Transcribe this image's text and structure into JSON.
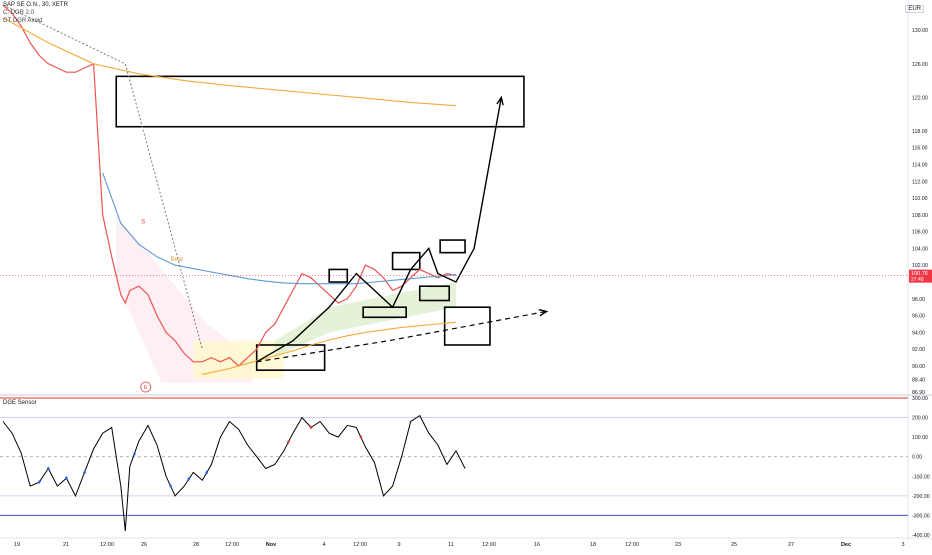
{
  "header": {
    "symbol": "SAP SE O.N., 30, XETR",
    "indicator_1": "C. DGR 2.0",
    "indicator_2": "GT DGR Avoid",
    "currency": "EUR"
  },
  "colors": {
    "price_line": "#ef5350",
    "cloud": "#fce4ec",
    "yellow_zone": "#fff9c4",
    "green_zone": "#dcedc8",
    "orange_ma": "#f4a83a",
    "blue_ma": "#5b9bd5",
    "gray_trend": "#7a7a7a",
    "current_price_bg": "#f23645",
    "oscillator": "#000000",
    "marker_blue": "#2962ff",
    "marker_red": "#e53935",
    "upper_band": "#e53935",
    "lower_band": "#3f51b5"
  },
  "annotations": {
    "bear_label": "Bear",
    "sell_label": "S",
    "event_label": "E"
  },
  "chart_data": [
    {
      "type": "line",
      "title": "SAP SE O.N., 30, XETR",
      "ylim": [
        86.9,
        133.0
      ],
      "y_ticks": [
        130.0,
        126.0,
        122.0,
        118.0,
        116.0,
        114.0,
        112.0,
        110.0,
        108.0,
        106.0,
        104.0,
        102.0,
        98.0,
        96.0,
        94.0,
        92.0,
        90.0,
        88.4,
        86.9
      ],
      "current_price": "100.76",
      "current_price_time": "27:49",
      "series": [
        {
          "role": "price",
          "x": [
            0,
            2,
            4,
            6,
            8,
            10,
            12,
            14,
            16,
            18,
            20,
            22,
            24,
            26,
            27,
            28,
            30,
            32,
            34,
            36,
            38,
            40,
            42,
            44,
            46,
            48,
            50,
            52,
            54,
            56,
            58,
            60,
            62,
            64,
            66,
            68,
            70,
            72,
            74,
            76,
            78,
            80,
            82,
            84,
            86,
            88,
            90,
            92,
            94,
            96,
            98,
            100
          ],
          "values": [
            133.0,
            132.0,
            130.5,
            128.5,
            127.0,
            126.0,
            125.5,
            125.0,
            125.0,
            125.5,
            126.0,
            108.0,
            103.0,
            98.5,
            97.5,
            99.0,
            99.5,
            98.5,
            96.0,
            94.0,
            93.0,
            91.5,
            90.5,
            90.5,
            91.0,
            90.5,
            91.0,
            90.0,
            91.0,
            92.0,
            94.0,
            95.0,
            97.0,
            99.0,
            101.0,
            100.5,
            99.5,
            98.5,
            97.5,
            98.0,
            99.5,
            102.0,
            101.5,
            100.5,
            99.0,
            99.5,
            100.5,
            101.5,
            101.0,
            100.5,
            101.0,
            100.8
          ]
        },
        {
          "role": "orange-ma",
          "x": [
            0,
            10,
            20,
            30,
            40,
            50,
            60,
            70,
            80,
            90,
            100
          ],
          "values": [
            131.5,
            128.5,
            126.0,
            124.8,
            124.0,
            123.4,
            122.9,
            122.4,
            121.9,
            121.4,
            121.0
          ]
        },
        {
          "role": "blue-ma",
          "x": [
            22,
            26,
            30,
            34,
            38,
            42,
            46,
            50,
            54,
            58,
            62,
            66,
            70,
            74,
            78,
            82,
            86,
            90,
            94,
            98,
            100
          ],
          "values": [
            113.0,
            107.0,
            104.5,
            103.0,
            102.0,
            101.6,
            101.2,
            100.8,
            100.4,
            100.1,
            99.9,
            99.8,
            99.8,
            99.8,
            99.8,
            100.0,
            100.2,
            100.4,
            100.6,
            100.8,
            100.9
          ]
        },
        {
          "role": "orange-ma-lower",
          "x": [
            44,
            50,
            56,
            60,
            64,
            68,
            72,
            76,
            80,
            84,
            88,
            92,
            96,
            100
          ],
          "values": [
            89.0,
            89.7,
            90.6,
            91.2,
            91.8,
            92.5,
            93.1,
            93.6,
            94.0,
            94.3,
            94.6,
            94.8,
            95.0,
            95.2
          ]
        },
        {
          "role": "gray-trend",
          "x": [
            0,
            27,
            34,
            40,
            44
          ],
          "values": [
            133.0,
            126.0,
            112.0,
            100.0,
            92.0
          ]
        },
        {
          "role": "forecast-up",
          "x": [
            56,
            64,
            72,
            78,
            82,
            86,
            90,
            94,
            96,
            100,
            104,
            110
          ],
          "values": [
            90.5,
            93.0,
            97.0,
            101.0,
            99.0,
            97.0,
            101.5,
            104.0,
            101.0,
            100.0,
            104.0,
            122.0
          ]
        },
        {
          "role": "forecast-dashed",
          "x": [
            56,
            85,
            120
          ],
          "values": [
            90.5,
            93.0,
            96.5
          ]
        }
      ]
    },
    {
      "type": "line",
      "title": "DGE Sensor",
      "ylim": [
        -400.0,
        300.0
      ],
      "y_ticks": [
        300.0,
        200.0,
        100.0,
        0.0,
        -100.0,
        -200.0,
        -300.0,
        -400.0
      ],
      "upper_band": 300,
      "lower_band": -300,
      "ref_levels": [
        200,
        0,
        -200
      ],
      "series": [
        {
          "role": "oscillator",
          "x": [
            0,
            2,
            4,
            6,
            8,
            10,
            12,
            14,
            16,
            18,
            20,
            22,
            24,
            26,
            27,
            28,
            30,
            32,
            34,
            36,
            38,
            40,
            42,
            44,
            46,
            48,
            50,
            52,
            54,
            56,
            58,
            60,
            62,
            64,
            66,
            68,
            70,
            72,
            74,
            76,
            78,
            80,
            82,
            84,
            86,
            88,
            90,
            92,
            94,
            96,
            98,
            100,
            102
          ],
          "values": [
            180,
            120,
            20,
            -150,
            -130,
            -60,
            -150,
            -110,
            -200,
            -80,
            40,
            120,
            150,
            -150,
            -380,
            -50,
            80,
            160,
            60,
            -100,
            -200,
            -150,
            -80,
            -120,
            -40,
            100,
            180,
            140,
            60,
            0,
            -60,
            -40,
            30,
            120,
            200,
            150,
            180,
            120,
            100,
            160,
            150,
            50,
            -30,
            -200,
            -150,
            0,
            180,
            210,
            120,
            60,
            -40,
            30,
            -60
          ]
        }
      ],
      "markers_blue_x": [
        8,
        10,
        14,
        18,
        29,
        37,
        41,
        45
      ],
      "markers_red_x": [
        63,
        68,
        79
      ]
    }
  ],
  "x_axis": {
    "labels": [
      "19",
      "21",
      "12:00",
      "26",
      "28",
      "12:00",
      "Nov",
      "4",
      "12:00",
      "9",
      "11",
      "12:00",
      "16",
      "18",
      "12:00",
      "23",
      "25",
      "27",
      "Dec",
      "3"
    ]
  }
}
